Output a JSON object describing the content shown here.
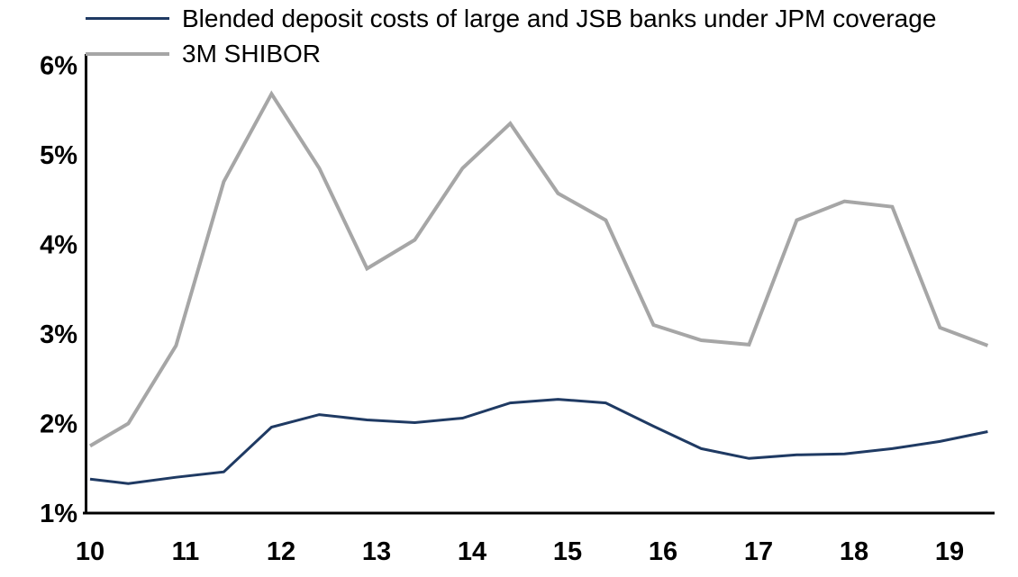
{
  "chart_data": {
    "type": "line",
    "title": "",
    "xlabel": "",
    "ylabel": "",
    "grid": false,
    "legend_position": "top-left",
    "xlim": [
      10,
      19.5
    ],
    "ylim": [
      1,
      6
    ],
    "x": [
      10,
      10.4,
      10.9,
      11.4,
      11.9,
      12.4,
      12.9,
      13.4,
      13.9,
      14.4,
      14.9,
      15.4,
      15.9,
      16.4,
      16.9,
      17.4,
      17.9,
      18.4,
      18.9,
      19.4
    ],
    "series": [
      {
        "name": "Blended deposit costs of large and JSB banks under JPM coverage",
        "color": "#1f3a63",
        "width": 3,
        "values": [
          1.38,
          1.33,
          1.4,
          1.46,
          1.96,
          2.1,
          2.04,
          2.01,
          2.06,
          2.23,
          2.27,
          2.23,
          1.97,
          1.72,
          1.61,
          1.65,
          1.66,
          1.72,
          1.8,
          1.91
        ]
      },
      {
        "name": "3M SHIBOR",
        "color": "#a6a6a6",
        "width": 4,
        "values": [
          1.75,
          2.0,
          2.87,
          4.7,
          5.68,
          4.85,
          3.73,
          4.05,
          4.85,
          5.35,
          4.57,
          4.27,
          3.1,
          2.93,
          2.88,
          4.27,
          4.48,
          4.42,
          3.07,
          2.87
        ]
      }
    ],
    "yticks": {
      "values": [
        1,
        2,
        3,
        4,
        5,
        6
      ],
      "labels": [
        "1%",
        "2%",
        "3%",
        "4%",
        "5%",
        "6%"
      ]
    },
    "xticks": {
      "values": [
        10,
        11,
        12,
        13,
        14,
        15,
        16,
        17,
        18,
        19
      ],
      "labels": [
        "10",
        "11",
        "12",
        "13",
        "14",
        "15",
        "16",
        "17",
        "18",
        "19"
      ]
    }
  }
}
